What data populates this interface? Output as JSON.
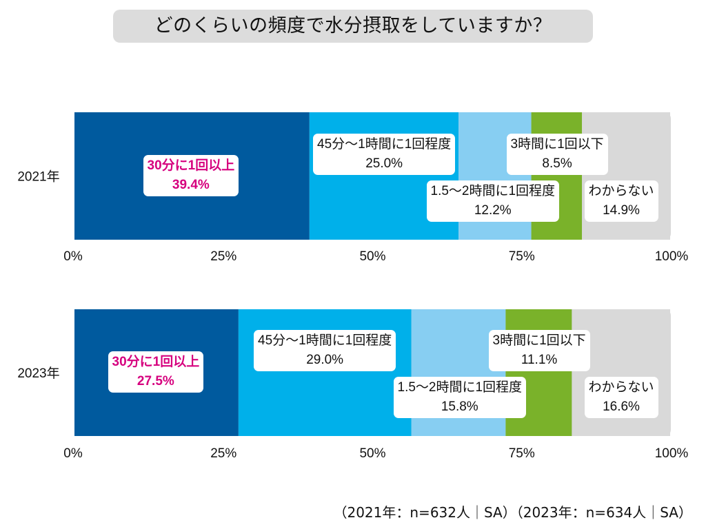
{
  "chart_data": {
    "type": "bar",
    "orientation": "horizontal-stacked-100",
    "title": "どのくらいの頻度で水分摂取をしていますか？",
    "categories": [
      "2021年",
      "2023年"
    ],
    "series": [
      {
        "name": "30分に1回以上",
        "color": "#005a9e",
        "values": [
          39.4,
          27.5
        ],
        "value_labels": [
          "39.4%",
          "27.5%"
        ],
        "highlight": true
      },
      {
        "name": "45分〜1時間に1回程度",
        "color": "#00b0ea",
        "values": [
          25.0,
          29.0
        ],
        "value_labels": [
          "25.0%",
          "29.0%"
        ]
      },
      {
        "name": "1.5〜2時間に1回程度",
        "color": "#87cef2",
        "values": [
          12.2,
          15.8
        ],
        "value_labels": [
          "12.2%",
          "15.8%"
        ]
      },
      {
        "name": "3時間に1回以下",
        "color": "#7ab22a",
        "values": [
          8.5,
          11.1
        ],
        "value_labels": [
          "8.5%",
          "11.1%"
        ]
      },
      {
        "name": "わからない",
        "color": "#d9d9d9",
        "values": [
          14.9,
          16.6
        ],
        "value_labels": [
          "14.9%",
          "16.6%"
        ]
      }
    ],
    "xlim": [
      0,
      100
    ],
    "ticks": [
      0,
      25,
      50,
      75,
      100
    ],
    "tick_labels": [
      "0%",
      "25%",
      "50%",
      "75%",
      "100%"
    ]
  },
  "footnote": "（2021年：n=632人｜SA）（2023年：n=634人｜SA）"
}
